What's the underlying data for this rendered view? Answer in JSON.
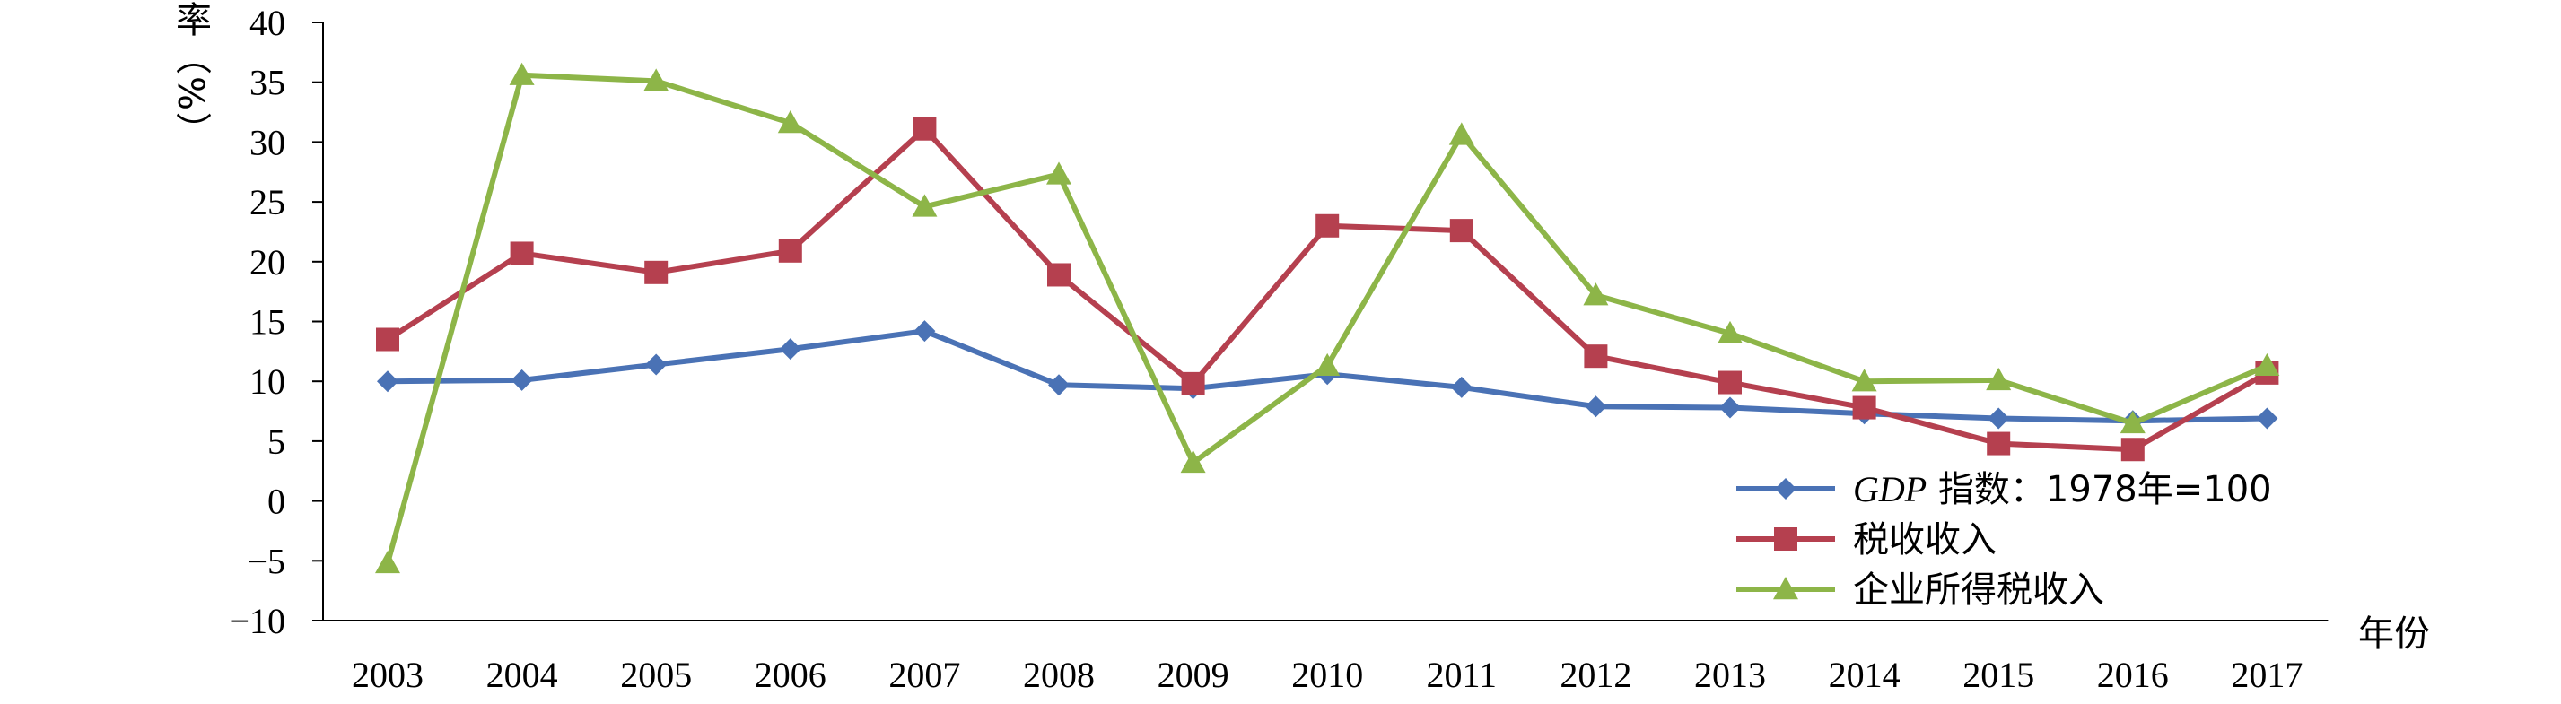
{
  "chart_data": {
    "type": "line",
    "title": "",
    "xlabel": "年份",
    "ylabel": "增长率（%）",
    "ylim": [
      -10,
      40
    ],
    "yticks": [
      -10,
      -5,
      0,
      5,
      10,
      15,
      20,
      25,
      30,
      35,
      40
    ],
    "grid": false,
    "legend_position": "bottom-right",
    "x": [
      "2003",
      "2004",
      "2005",
      "2006",
      "2007",
      "2008",
      "2009",
      "2010",
      "2011",
      "2012",
      "2013",
      "2014",
      "2015",
      "2016",
      "2017"
    ],
    "series": [
      {
        "name": "GDP 指数：1978年=100",
        "name_italic": "GDP",
        "name_rest": " 指数：1978年=100",
        "color": "#4A72B5",
        "marker": "diamond",
        "values": [
          10.0,
          10.1,
          11.4,
          12.7,
          14.2,
          9.7,
          9.4,
          10.6,
          9.5,
          7.9,
          7.8,
          7.3,
          6.9,
          6.7,
          6.9
        ]
      },
      {
        "name": "税收收入",
        "color": "#B5404F",
        "marker": "square",
        "values": [
          13.5,
          20.7,
          19.1,
          20.9,
          31.1,
          18.9,
          9.8,
          23.0,
          22.6,
          12.1,
          9.9,
          7.8,
          4.8,
          4.3,
          10.7
        ]
      },
      {
        "name": "企业所得税收入",
        "color": "#8DB548",
        "marker": "triangle",
        "values": [
          -5.2,
          35.6,
          35.1,
          31.6,
          24.6,
          27.3,
          3.2,
          11.3,
          30.6,
          17.2,
          14.0,
          10.0,
          10.1,
          6.5,
          11.3
        ]
      }
    ]
  }
}
